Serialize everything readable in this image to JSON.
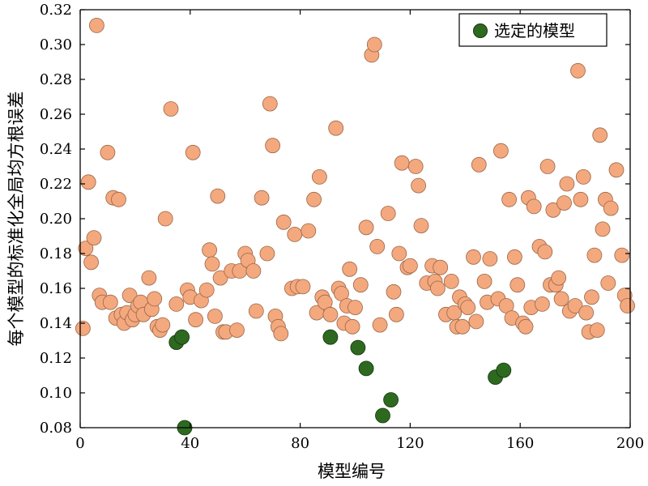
{
  "chart_data": {
    "type": "scatter",
    "xlabel": "模型编号",
    "ylabel": "每个模型的标准化全局均方根误差",
    "xlim": [
      0,
      200
    ],
    "ylim": [
      0.08,
      0.32
    ],
    "x_ticks": [
      0,
      40,
      80,
      120,
      160,
      200
    ],
    "y_ticks": [
      0.08,
      0.1,
      0.12,
      0.14,
      0.16,
      0.18,
      0.2,
      0.22,
      0.24,
      0.26,
      0.28,
      0.3,
      0.32
    ],
    "grid": false,
    "legend_position": "top-right",
    "series": [
      {
        "name": "",
        "color": "#f4a87e",
        "edge_color": "#9a6748",
        "points": [
          [
            1,
            0.137
          ],
          [
            2,
            0.183
          ],
          [
            3,
            0.221
          ],
          [
            4,
            0.175
          ],
          [
            5,
            0.189
          ],
          [
            6,
            0.311
          ],
          [
            7,
            0.156
          ],
          [
            8,
            0.152
          ],
          [
            10,
            0.238
          ],
          [
            11,
            0.152
          ],
          [
            12,
            0.212
          ],
          [
            13,
            0.143
          ],
          [
            14,
            0.211
          ],
          [
            15,
            0.145
          ],
          [
            16,
            0.14
          ],
          [
            17,
            0.146
          ],
          [
            18,
            0.156
          ],
          [
            19,
            0.142
          ],
          [
            20,
            0.145
          ],
          [
            21,
            0.15
          ],
          [
            22,
            0.152
          ],
          [
            23,
            0.145
          ],
          [
            25,
            0.166
          ],
          [
            26,
            0.148
          ],
          [
            27,
            0.154
          ],
          [
            28,
            0.138
          ],
          [
            29,
            0.136
          ],
          [
            30,
            0.139
          ],
          [
            31,
            0.2
          ],
          [
            33,
            0.263
          ],
          [
            35,
            0.151
          ],
          [
            39,
            0.159
          ],
          [
            40,
            0.155
          ],
          [
            41,
            0.238
          ],
          [
            42,
            0.142
          ],
          [
            44,
            0.153
          ],
          [
            46,
            0.159
          ],
          [
            47,
            0.182
          ],
          [
            48,
            0.174
          ],
          [
            49,
            0.144
          ],
          [
            50,
            0.213
          ],
          [
            51,
            0.166
          ],
          [
            52,
            0.135
          ],
          [
            53,
            0.135
          ],
          [
            55,
            0.17
          ],
          [
            57,
            0.136
          ],
          [
            58,
            0.17
          ],
          [
            60,
            0.18
          ],
          [
            61,
            0.176
          ],
          [
            63,
            0.17
          ],
          [
            64,
            0.147
          ],
          [
            66,
            0.212
          ],
          [
            68,
            0.18
          ],
          [
            69,
            0.266
          ],
          [
            70,
            0.242
          ],
          [
            71,
            0.144
          ],
          [
            72,
            0.138
          ],
          [
            73,
            0.134
          ],
          [
            74,
            0.198
          ],
          [
            77,
            0.16
          ],
          [
            78,
            0.191
          ],
          [
            79,
            0.161
          ],
          [
            81,
            0.161
          ],
          [
            83,
            0.193
          ],
          [
            85,
            0.211
          ],
          [
            86,
            0.146
          ],
          [
            87,
            0.224
          ],
          [
            88,
            0.155
          ],
          [
            89,
            0.152
          ],
          [
            91,
            0.145
          ],
          [
            93,
            0.252
          ],
          [
            94,
            0.16
          ],
          [
            95,
            0.157
          ],
          [
            96,
            0.14
          ],
          [
            97,
            0.15
          ],
          [
            98,
            0.171
          ],
          [
            99,
            0.138
          ],
          [
            100,
            0.149
          ],
          [
            102,
            0.162
          ],
          [
            104,
            0.195
          ],
          [
            106,
            0.294
          ],
          [
            107,
            0.3
          ],
          [
            108,
            0.184
          ],
          [
            109,
            0.139
          ],
          [
            112,
            0.203
          ],
          [
            114,
            0.158
          ],
          [
            115,
            0.145
          ],
          [
            116,
            0.18
          ],
          [
            117,
            0.232
          ],
          [
            119,
            0.172
          ],
          [
            120,
            0.173
          ],
          [
            122,
            0.23
          ],
          [
            123,
            0.219
          ],
          [
            124,
            0.196
          ],
          [
            126,
            0.163
          ],
          [
            128,
            0.173
          ],
          [
            129,
            0.164
          ],
          [
            130,
            0.16
          ],
          [
            131,
            0.172
          ],
          [
            133,
            0.145
          ],
          [
            135,
            0.164
          ],
          [
            136,
            0.146
          ],
          [
            137,
            0.138
          ],
          [
            138,
            0.155
          ],
          [
            139,
            0.138
          ],
          [
            140,
            0.151
          ],
          [
            141,
            0.149
          ],
          [
            143,
            0.178
          ],
          [
            144,
            0.141
          ],
          [
            145,
            0.231
          ],
          [
            147,
            0.164
          ],
          [
            148,
            0.152
          ],
          [
            149,
            0.177
          ],
          [
            152,
            0.154
          ],
          [
            153,
            0.239
          ],
          [
            155,
            0.15
          ],
          [
            156,
            0.211
          ],
          [
            157,
            0.143
          ],
          [
            158,
            0.178
          ],
          [
            159,
            0.162
          ],
          [
            161,
            0.14
          ],
          [
            162,
            0.138
          ],
          [
            163,
            0.212
          ],
          [
            164,
            0.149
          ],
          [
            165,
            0.207
          ],
          [
            167,
            0.184
          ],
          [
            168,
            0.151
          ],
          [
            169,
            0.181
          ],
          [
            170,
            0.23
          ],
          [
            171,
            0.162
          ],
          [
            172,
            0.205
          ],
          [
            173,
            0.162
          ],
          [
            174,
            0.166
          ],
          [
            175,
            0.154
          ],
          [
            176,
            0.209
          ],
          [
            177,
            0.22
          ],
          [
            178,
            0.147
          ],
          [
            180,
            0.15
          ],
          [
            181,
            0.285
          ],
          [
            182,
            0.211
          ],
          [
            183,
            0.224
          ],
          [
            184,
            0.146
          ],
          [
            185,
            0.135
          ],
          [
            186,
            0.155
          ],
          [
            187,
            0.179
          ],
          [
            188,
            0.136
          ],
          [
            189,
            0.248
          ],
          [
            190,
            0.194
          ],
          [
            191,
            0.211
          ],
          [
            192,
            0.163
          ],
          [
            193,
            0.206
          ],
          [
            195,
            0.228
          ],
          [
            197,
            0.179
          ],
          [
            198,
            0.156
          ],
          [
            199,
            0.15
          ]
        ]
      },
      {
        "name": "选定的模型",
        "color": "#2d6a1f",
        "edge_color": "#16330e",
        "points": [
          [
            35,
            0.129
          ],
          [
            37,
            0.132
          ],
          [
            38,
            0.08
          ],
          [
            91,
            0.132
          ],
          [
            101,
            0.126
          ],
          [
            104,
            0.114
          ],
          [
            110,
            0.087
          ],
          [
            113,
            0.096
          ],
          [
            151,
            0.109
          ],
          [
            154,
            0.113
          ]
        ]
      }
    ]
  }
}
